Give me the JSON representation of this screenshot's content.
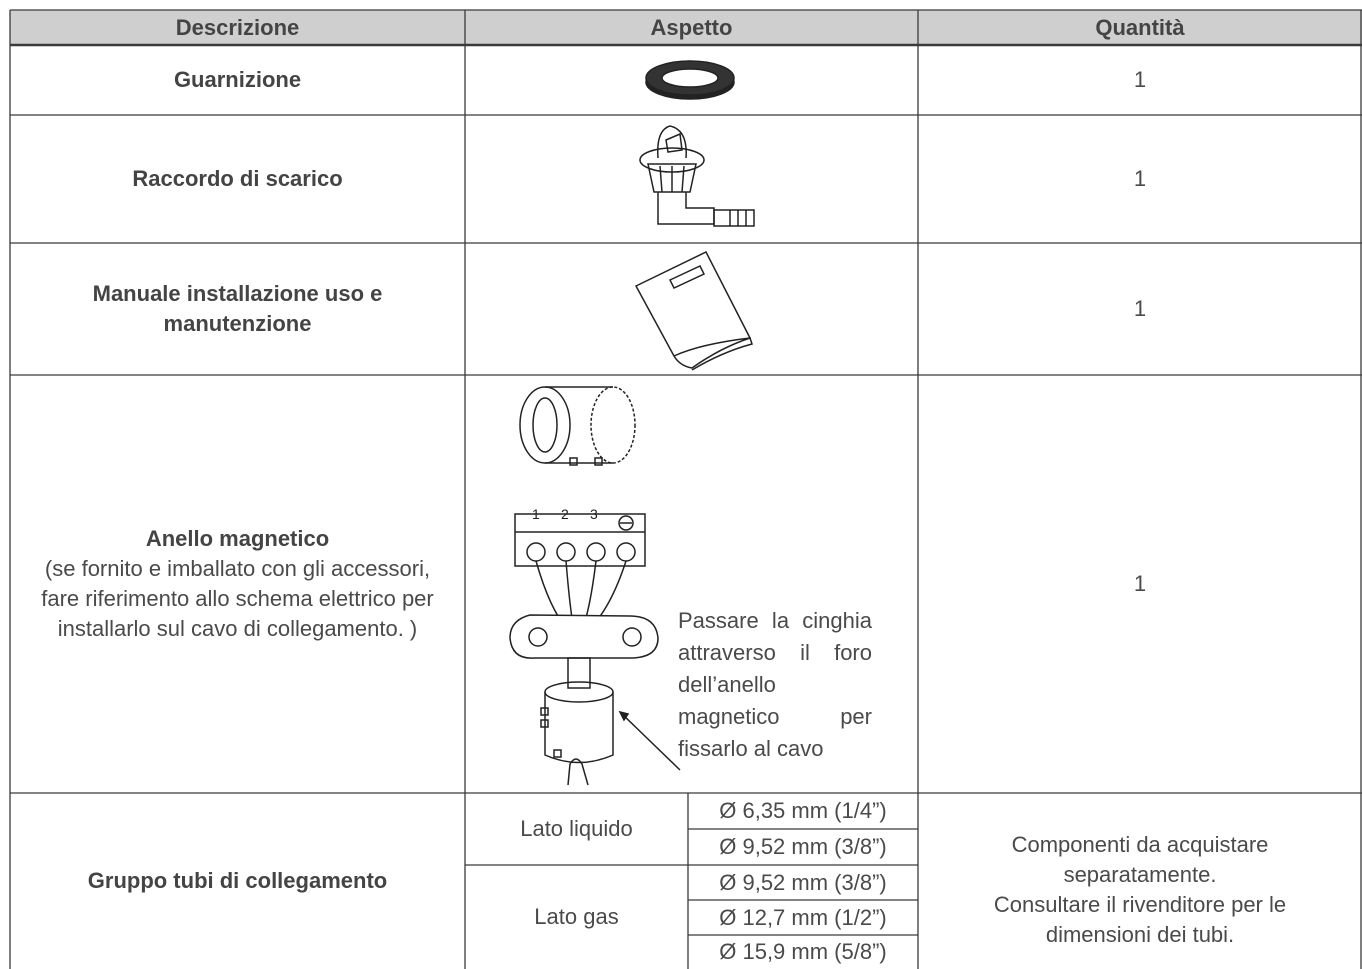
{
  "table": {
    "header": [
      "Descrizione",
      "Aspetto",
      "Quantità"
    ],
    "rows": [
      {
        "description": "Guarnizione",
        "quantity": "1"
      },
      {
        "description": "Raccordo di scarico",
        "quantity": "1"
      },
      {
        "description": "Manuale installazione uso e manutenzione",
        "quantity": "1"
      },
      {
        "description": "Anello magnetico",
        "description_note": "(se fornito e imballato con gli accessori, fare riferimento allo schema elettrico per installarlo sul cavo di collegamento. )",
        "terminal_labels": [
          "1",
          "2",
          "3"
        ],
        "aspect_note": "Passare la cinghia attraverso il foro dell’anello magnetico per fissarlo al cavo",
        "quantity": "1"
      },
      {
        "description": "Gruppo tubi di collegamento",
        "pipes": [
          {
            "side": "Lato liquido",
            "sizes": [
              "Ø 6,35 mm (1/4”)",
              "Ø 9,52 mm (3/8”)"
            ]
          },
          {
            "side": "Lato gas",
            "sizes": [
              "Ø 9,52 mm (3/8”)",
              "Ø 12,7 mm (1/2”)",
              "Ø 15,9 mm (5/8”)"
            ]
          }
        ],
        "quantity_lines": [
          "Componenti da acquistare separatamente.",
          "Consultare il rivenditore per le dimensioni dei tubi."
        ]
      }
    ]
  }
}
